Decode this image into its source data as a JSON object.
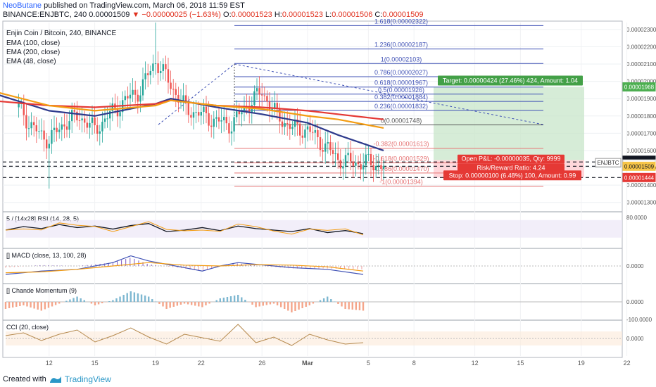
{
  "header": {
    "author": "NeoButane",
    "published": "published on TradingView.com, March 06, 2018 11:59 EST",
    "symbol_line": "BINANCE:ENJBTC, 240",
    "last": "0.00001509",
    "change": "−0.00000025 (−1.63%)",
    "o_label": "O:",
    "o": "0.00001523",
    "h_label": "H:",
    "h": "0.00001523",
    "l_label": "L:",
    "l": "0.00001506",
    "c_label": "C:",
    "c": "0.00001509"
  },
  "legend": {
    "title": "Enjin Coin / Bitcoin, 240, BINANCE",
    "ema100": "EMA (100, close)",
    "ema200": "EMA (200, close)",
    "ema48": "EMA (48, close)"
  },
  "footer": {
    "created_with": "Created with",
    "brand": "TradingView"
  },
  "colors": {
    "up": "#26a69a",
    "down": "#ef5350",
    "ema100": "#2e3a8c",
    "ema200": "#e53935",
    "ema48": "#f39c12",
    "fib": "#3f51b5",
    "target_zone": "#c8e6c9",
    "stop_zone": "#ffcdd2",
    "macd": "#3f51b5",
    "signal": "#f39c12",
    "cci": "#b5894d"
  },
  "chart_data": [
    {
      "type": "candlestick",
      "title": "Enjin Coin / Bitcoin, 240, BINANCE",
      "ylim": [
        1.25e-05,
        2.34e-05
      ],
      "y_ticks": [
        "0.00002300",
        "0.00002200",
        "0.00002100",
        "0.00002000",
        "0.00001900",
        "0.00001800",
        "0.00001700",
        "0.00001600",
        "0.00001500",
        "0.00001400",
        "0.00001300"
      ],
      "x_ticks": [
        "12",
        "15",
        "19",
        "22",
        "26",
        "Mar",
        "5",
        "8",
        "12",
        "15",
        "19",
        "22"
      ],
      "close_path": [
        [
          "Feb 10",
          1.85e-05
        ],
        [
          "Feb 11",
          1.72e-05
        ],
        [
          "Feb 12",
          1.66e-05
        ],
        [
          "Feb 13",
          1.76e-05
        ],
        [
          "Feb 14",
          1.8e-05
        ],
        [
          "Feb 15",
          1.72e-05
        ],
        [
          "Feb 16",
          1.81e-05
        ],
        [
          "Feb 17",
          1.89e-05
        ],
        [
          "Feb 18",
          1.95e-05
        ],
        [
          "Feb 19",
          2.12e-05
        ],
        [
          "Feb 20",
          1.98e-05
        ],
        [
          "Feb 21",
          1.84e-05
        ],
        [
          "Feb 22",
          1.81e-05
        ],
        [
          "Feb 23",
          1.77e-05
        ],
        [
          "Feb 24",
          1.75e-05
        ],
        [
          "Feb 25",
          1.86e-05
        ],
        [
          "Feb 26",
          1.94e-05
        ],
        [
          "Feb 27",
          1.8e-05
        ],
        [
          "Feb 28",
          1.73e-05
        ],
        [
          "Mar 1",
          1.72e-05
        ],
        [
          "Mar 2",
          1.64e-05
        ],
        [
          "Mar 3",
          1.55e-05
        ],
        [
          "Mar 4",
          1.53e-05
        ],
        [
          "Mar 5",
          1.53e-05
        ],
        [
          "Mar 6",
          1.51e-05
        ]
      ],
      "spike_high": [
        "Feb 19",
        2.34e-05
      ],
      "wick_low": [
        "Feb 12",
        1.38e-05
      ],
      "series": [
        {
          "name": "EMA (100, close)",
          "values": [
            [
              "Feb 8",
              1.94e-05
            ],
            [
              "Feb 12",
              1.83e-05
            ],
            [
              "Feb 15",
              1.8e-05
            ],
            [
              "Feb 19",
              1.87e-05
            ],
            [
              "Feb 20",
              1.9e-05
            ],
            [
              "Feb 23",
              1.85e-05
            ],
            [
              "Feb 26",
              1.81e-05
            ],
            [
              "Mar 1",
              1.76e-05
            ],
            [
              "Mar 3",
              1.69e-05
            ],
            [
              "Mar 6",
              1.6e-05
            ]
          ]
        },
        {
          "name": "EMA (200, close)",
          "values": [
            [
              "Feb 8",
              1.89e-05
            ],
            [
              "Feb 12",
              1.86e-05
            ],
            [
              "Feb 15",
              1.85e-05
            ],
            [
              "Feb 19",
              1.87e-05
            ],
            [
              "Feb 20",
              1.89e-05
            ],
            [
              "Feb 23",
              1.86e-05
            ],
            [
              "Feb 26",
              1.85e-05
            ],
            [
              "Mar 1",
              1.83e-05
            ],
            [
              "Mar 3",
              1.81e-05
            ],
            [
              "Mar 6",
              1.78e-05
            ]
          ]
        },
        {
          "name": "EMA (48, close)",
          "values": [
            [
              "Feb 8",
              1.95e-05
            ],
            [
              "Feb 12",
              1.86e-05
            ],
            [
              "Feb 15",
              1.83e-05
            ],
            [
              "Feb 19",
              1.86e-05
            ],
            [
              "Feb 20",
              1.89e-05
            ],
            [
              "Feb 23",
              1.86e-05
            ],
            [
              "Feb 26",
              1.84e-05
            ],
            [
              "Mar 1",
              1.8e-05
            ],
            [
              "Mar 3",
              1.78e-05
            ],
            [
              "Mar 6",
              1.73e-05
            ]
          ]
        }
      ],
      "fib_levels": [
        {
          "label": "1.618(0.00002322)",
          "price": 2.322e-05
        },
        {
          "label": "1.236(0.00002187)",
          "price": 2.187e-05
        },
        {
          "label": "1(0.00002103)",
          "price": 2.103e-05
        },
        {
          "label": "0.786(0.00002027)",
          "price": 2.027e-05
        },
        {
          "label": "0.618(0.00001967)",
          "price": 1.967e-05
        },
        {
          "label": "0.5(0.00001926)",
          "price": 1.926e-05
        },
        {
          "label": "0.382(0.00001884)",
          "price": 1.884e-05
        },
        {
          "label": "0.236(0.00001832)",
          "price": 1.832e-05
        },
        {
          "label": "0(0.00001748)",
          "price": 1.748e-05
        },
        {
          "label": "-0.382(0.00001613)",
          "price": 1.613e-05
        },
        {
          "label": "-0.618(0.00001529)",
          "price": 1.529e-05
        },
        {
          "label": "-0.786(0.00001470)",
          "price": 1.47e-05
        },
        {
          "label": "-1(0.00001394)",
          "price": 1.394e-05
        }
      ],
      "dashed_levels": [
        1.534e-05,
        1.509e-05,
        1.444e-05
      ],
      "position": {
        "entry": 1.544e-05,
        "target_price": 1.968e-05,
        "stop_price": 1.444e-05,
        "target_label": "Target: 0.00000424 (27.46%) 424, Amount: 1.04",
        "stop_label": "Stop: 0.00000100 (6.48%) 100, Amount: 0.99",
        "pnl_label": "Open P&L: -0.00000035, Qty: 9999",
        "rr_label": "Risk/Reward Ratio: 4.24"
      },
      "price_badges": [
        {
          "text": "0.00001968",
          "price": 1.968e-05,
          "color": "#4caf50"
        },
        {
          "text": "0.00001544",
          "price": 1.544e-05,
          "color": "#131722"
        },
        {
          "text": "0.00001534",
          "price": 1.534e-05,
          "color": "#131722"
        },
        {
          "text": "03:00:18",
          "price": 1.522e-05,
          "color": "#ffffff"
        },
        {
          "text": "0.00001509",
          "price": 1.509e-05,
          "color": "#f7c548"
        },
        {
          "text": "0.00001444",
          "price": 1.444e-05,
          "color": "#e53935"
        }
      ],
      "symbol_tag": "ENJBTC"
    },
    {
      "type": "line",
      "title": "5 / [14x28] RSI  (14, 28, 5)",
      "ylim": [
        20,
        90
      ],
      "y_ticks": [
        "80.0000"
      ],
      "band": [
        40,
        75
      ],
      "series": [
        {
          "values": [
            [
              0,
              55
            ],
            [
              5,
              62
            ],
            [
              10,
              58
            ],
            [
              15,
              66
            ],
            [
              20,
              60
            ],
            [
              25,
              63
            ],
            [
              30,
              57
            ],
            [
              35,
              64
            ],
            [
              40,
              68
            ],
            [
              45,
              52
            ],
            [
              50,
              55
            ],
            [
              55,
              60
            ],
            [
              60,
              54
            ],
            [
              65,
              63
            ],
            [
              70,
              58
            ],
            [
              75,
              55
            ],
            [
              80,
              52
            ],
            [
              85,
              58
            ],
            [
              90,
              50
            ],
            [
              95,
              54
            ],
            [
              100,
              48
            ]
          ]
        }
      ]
    },
    {
      "type": "line",
      "title": "[] MACD  (close, 13, 100, 28)",
      "ylim": [
        -1,
        1
      ],
      "y_ticks": [
        "0.0000"
      ],
      "series": [
        {
          "name": "MACD",
          "values": [
            [
              0,
              -0.5
            ],
            [
              10,
              -0.3
            ],
            [
              20,
              -0.2
            ],
            [
              30,
              0.2
            ],
            [
              35,
              0.6
            ],
            [
              40,
              0.3
            ],
            [
              45,
              0.1
            ],
            [
              55,
              -0.3
            ],
            [
              60,
              0.0
            ],
            [
              65,
              0.2
            ],
            [
              70,
              0.1
            ],
            [
              80,
              -0.1
            ],
            [
              90,
              -0.2
            ],
            [
              100,
              -0.5
            ]
          ]
        },
        {
          "name": "Signal",
          "values": [
            [
              0,
              -0.4
            ],
            [
              10,
              -0.35
            ],
            [
              20,
              -0.2
            ],
            [
              30,
              0.0
            ],
            [
              40,
              0.2
            ],
            [
              50,
              0.05
            ],
            [
              60,
              0.0
            ],
            [
              70,
              0.08
            ],
            [
              80,
              0.05
            ],
            [
              90,
              -0.05
            ],
            [
              100,
              -0.3
            ]
          ]
        }
      ]
    },
    {
      "type": "area",
      "title": "[] Chande Momentum (9)",
      "ylim": [
        -100,
        100
      ],
      "y_ticks": [
        "0.0000",
        "-100.0000"
      ],
      "series": [
        {
          "values": [
            [
              0,
              -40
            ],
            [
              5,
              -20
            ],
            [
              10,
              -50
            ],
            [
              15,
              -10
            ],
            [
              20,
              30
            ],
            [
              25,
              -20
            ],
            [
              30,
              10
            ],
            [
              35,
              60
            ],
            [
              40,
              30
            ],
            [
              45,
              -40
            ],
            [
              50,
              -10
            ],
            [
              55,
              -30
            ],
            [
              60,
              20
            ],
            [
              65,
              40
            ],
            [
              70,
              -30
            ],
            [
              75,
              -10
            ],
            [
              80,
              -60
            ],
            [
              85,
              -20
            ],
            [
              90,
              30
            ],
            [
              95,
              -40
            ],
            [
              100,
              -50
            ]
          ]
        }
      ]
    },
    {
      "type": "line",
      "title": "CCI (20, close)",
      "ylim": [
        -250,
        250
      ],
      "y_ticks": [
        "0.0000"
      ],
      "band": [
        -100,
        100
      ],
      "series": [
        {
          "values": [
            [
              0,
              40
            ],
            [
              5,
              80
            ],
            [
              10,
              -30
            ],
            [
              15,
              60
            ],
            [
              20,
              120
            ],
            [
              25,
              -50
            ],
            [
              30,
              40
            ],
            [
              35,
              150
            ],
            [
              40,
              20
            ],
            [
              45,
              -80
            ],
            [
              50,
              60
            ],
            [
              55,
              10
            ],
            [
              60,
              -40
            ],
            [
              65,
              200
            ],
            [
              70,
              -60
            ],
            [
              75,
              20
            ],
            [
              80,
              -100
            ],
            [
              85,
              60
            ],
            [
              90,
              -20
            ],
            [
              95,
              -80
            ],
            [
              100,
              -60
            ]
          ]
        }
      ]
    }
  ]
}
